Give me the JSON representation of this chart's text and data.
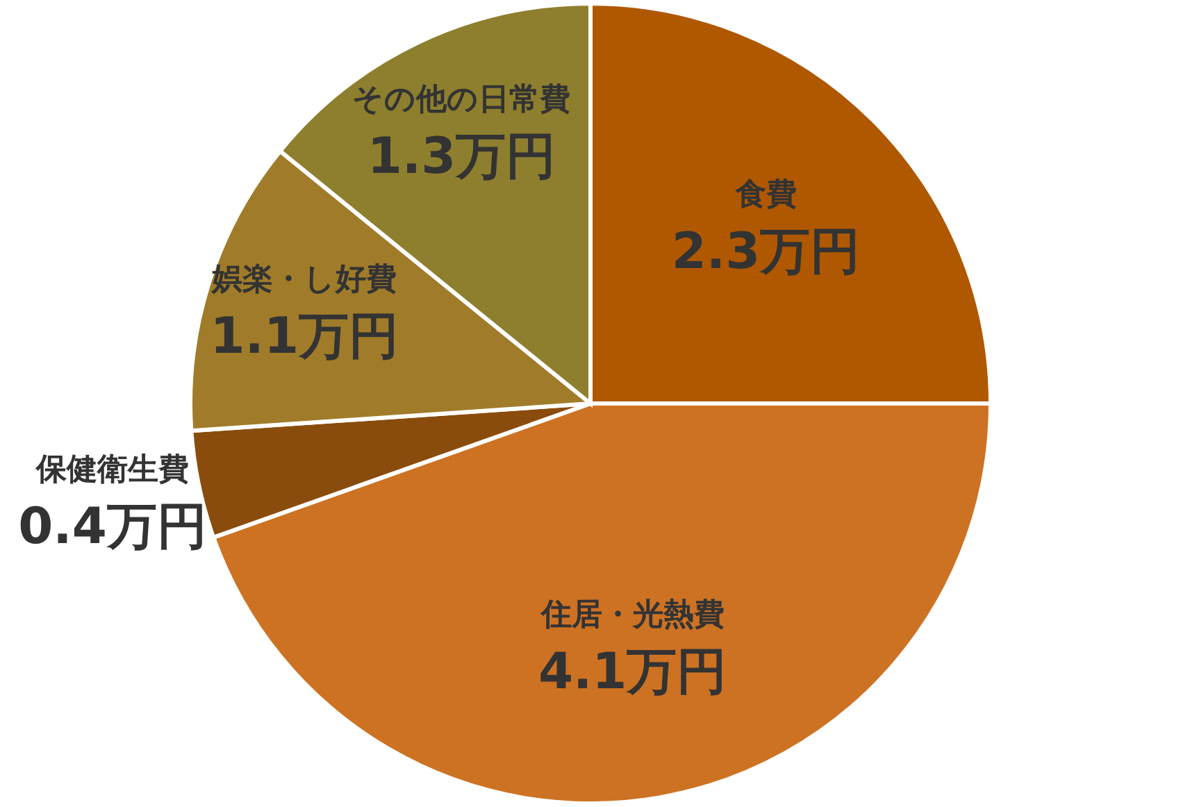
{
  "chart_data": {
    "type": "pie",
    "categories": [
      "食費",
      "住居・光熱費",
      "保健衛生費",
      "娯楽・し好費",
      "その他の日常費"
    ],
    "values": [
      2.3,
      4.1,
      0.4,
      1.1,
      1.3
    ],
    "colors": [
      "#b05800",
      "#cd7223",
      "#8a4c0c",
      "#a07c2a",
      "#8e7f2f"
    ],
    "value_labels": [
      "2.3万円",
      "4.1万円",
      "0.4万円",
      "1.1万円",
      "1.3万円"
    ]
  }
}
